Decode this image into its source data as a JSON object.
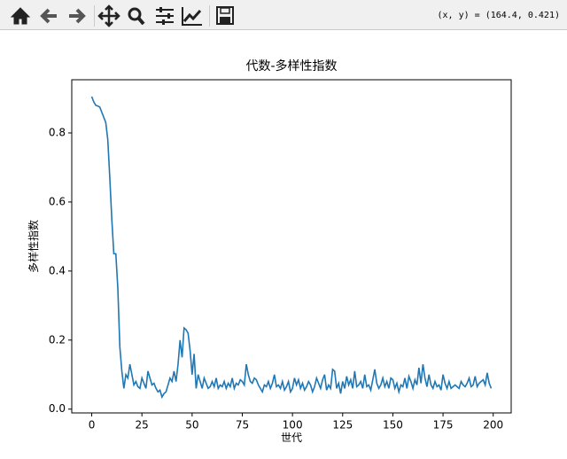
{
  "toolbar": {
    "coords": "(x, y) = (164.4, 0.421)"
  },
  "chart_data": {
    "type": "line",
    "title": "代数-多样性指数",
    "x_label": "世代",
    "y_label": "多样性指数",
    "x": [
      0,
      1,
      2,
      3,
      4,
      5,
      6,
      7,
      8,
      9,
      10,
      11,
      12,
      13,
      14,
      15,
      16,
      17,
      18,
      19,
      20,
      21,
      22,
      23,
      24,
      25,
      26,
      27,
      28,
      29,
      30,
      31,
      32,
      33,
      34,
      35,
      36,
      37,
      38,
      39,
      40,
      41,
      42,
      43,
      44,
      45,
      46,
      47,
      48,
      49,
      50,
      51,
      52,
      53,
      54,
      55,
      56,
      57,
      58,
      59,
      60,
      61,
      62,
      63,
      64,
      65,
      66,
      67,
      68,
      69,
      70,
      71,
      72,
      73,
      74,
      75,
      76,
      77,
      78,
      79,
      80,
      81,
      82,
      83,
      84,
      85,
      86,
      87,
      88,
      89,
      90,
      91,
      92,
      93,
      94,
      95,
      96,
      97,
      98,
      99,
      100,
      101,
      102,
      103,
      104,
      105,
      106,
      107,
      108,
      109,
      110,
      111,
      112,
      113,
      114,
      115,
      116,
      117,
      118,
      119,
      120,
      121,
      122,
      123,
      124,
      125,
      126,
      127,
      128,
      129,
      130,
      131,
      132,
      133,
      134,
      135,
      136,
      137,
      138,
      139,
      140,
      141,
      142,
      143,
      144,
      145,
      146,
      147,
      148,
      149,
      150,
      151,
      152,
      153,
      154,
      155,
      156,
      157,
      158,
      159,
      160,
      161,
      162,
      163,
      164,
      165,
      166,
      167,
      168,
      169,
      170,
      171,
      172,
      173,
      174,
      175,
      176,
      177,
      178,
      179,
      180,
      181,
      182,
      183,
      184,
      185,
      186,
      187,
      188,
      189,
      190,
      191,
      192,
      193,
      194,
      195,
      196,
      197,
      198,
      199
    ],
    "series": [
      {
        "color": "#1f77b4",
        "values": [
          0.905,
          0.89,
          0.88,
          0.878,
          0.875,
          0.86,
          0.845,
          0.83,
          0.78,
          0.67,
          0.55,
          0.45,
          0.45,
          0.35,
          0.18,
          0.11,
          0.06,
          0.1,
          0.09,
          0.13,
          0.1,
          0.07,
          0.08,
          0.065,
          0.06,
          0.09,
          0.075,
          0.06,
          0.11,
          0.09,
          0.07,
          0.075,
          0.06,
          0.05,
          0.055,
          0.035,
          0.045,
          0.05,
          0.07,
          0.09,
          0.08,
          0.11,
          0.08,
          0.13,
          0.2,
          0.15,
          0.235,
          0.23,
          0.22,
          0.17,
          0.1,
          0.16,
          0.06,
          0.1,
          0.08,
          0.06,
          0.09,
          0.075,
          0.06,
          0.065,
          0.08,
          0.065,
          0.09,
          0.06,
          0.07,
          0.065,
          0.08,
          0.06,
          0.075,
          0.065,
          0.09,
          0.06,
          0.075,
          0.07,
          0.085,
          0.08,
          0.07,
          0.13,
          0.1,
          0.08,
          0.075,
          0.09,
          0.085,
          0.07,
          0.06,
          0.05,
          0.07,
          0.065,
          0.08,
          0.06,
          0.075,
          0.1,
          0.065,
          0.07,
          0.06,
          0.08,
          0.055,
          0.065,
          0.08,
          0.05,
          0.06,
          0.09,
          0.07,
          0.085,
          0.06,
          0.075,
          0.055,
          0.065,
          0.08,
          0.07,
          0.05,
          0.065,
          0.09,
          0.075,
          0.06,
          0.085,
          0.1,
          0.055,
          0.07,
          0.06,
          0.115,
          0.11,
          0.06,
          0.075,
          0.045,
          0.08,
          0.06,
          0.095,
          0.07,
          0.085,
          0.06,
          0.11,
          0.065,
          0.07,
          0.08,
          0.06,
          0.1,
          0.065,
          0.07,
          0.055,
          0.085,
          0.115,
          0.075,
          0.06,
          0.07,
          0.09,
          0.065,
          0.08,
          0.06,
          0.09,
          0.085,
          0.06,
          0.075,
          0.05,
          0.07,
          0.065,
          0.09,
          0.06,
          0.095,
          0.08,
          0.06,
          0.085,
          0.07,
          0.12,
          0.075,
          0.13,
          0.09,
          0.065,
          0.1,
          0.07,
          0.06,
          0.08,
          0.065,
          0.07,
          0.055,
          0.1,
          0.075,
          0.06,
          0.08,
          0.06,
          0.065,
          0.07,
          0.065,
          0.06,
          0.08,
          0.07,
          0.065,
          0.075,
          0.09,
          0.065,
          0.07,
          0.095,
          0.065,
          0.075,
          0.08,
          0.085,
          0.07,
          0.105,
          0.075,
          0.06
        ]
      }
    ],
    "xlim": [
      -9.95,
      208.95
    ],
    "ylim": [
      -0.011,
      0.954
    ],
    "xticks": [
      0,
      25,
      50,
      75,
      100,
      125,
      150,
      175,
      200
    ],
    "yticks": [
      {
        "value": 0,
        "label": "0.0"
      },
      0.2,
      0.4,
      0.6,
      0.8
    ]
  }
}
